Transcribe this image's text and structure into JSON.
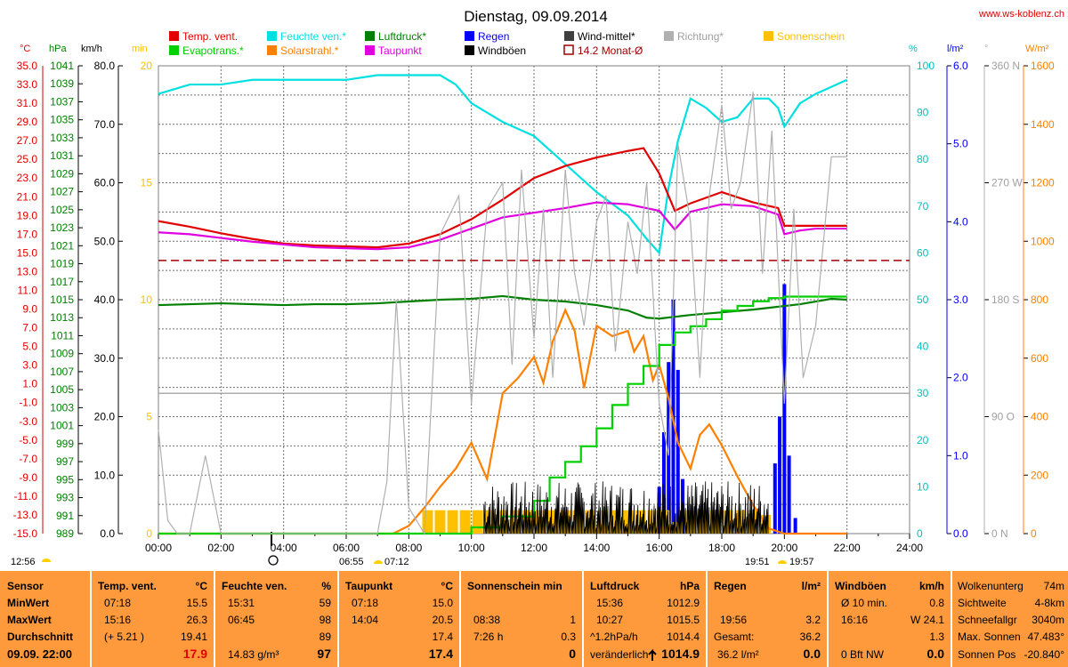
{
  "header": {
    "title": "Dienstag, 09.09.2014",
    "site": "www.ws-koblenz.ch"
  },
  "axis_units": {
    "temp": "°C",
    "hpa": "hPa",
    "kmh": "km/h",
    "min": "min",
    "pct": "%",
    "lm2": "l/m²",
    "deg": "°",
    "wm2": "W/m²"
  },
  "legend": [
    {
      "label": "Temp. vent.",
      "color": "#e00000",
      "style": "fill"
    },
    {
      "label": "Feuchte ven.*",
      "color": "#00e0e0",
      "style": "fill"
    },
    {
      "label": "Luftdruck*",
      "color": "#008000",
      "style": "fill"
    },
    {
      "label": "Regen",
      "color": "#0000ff",
      "style": "fill"
    },
    {
      "label": "Wind-mittel*",
      "color": "#404040",
      "style": "fill"
    },
    {
      "label": "Richtung*",
      "color": "#b0b0b0",
      "style": "fill"
    },
    {
      "label": "Sonnenschein",
      "color": "#ffc000",
      "style": "fill"
    },
    {
      "label": "Evapotrans.*",
      "color": "#00d000",
      "style": "fill"
    },
    {
      "label": "Solarstrahl.*",
      "color": "#ff8000",
      "style": "fill"
    },
    {
      "label": "Taupunkt",
      "color": "#e000e0",
      "style": "fill"
    },
    {
      "label": "Windböen",
      "color": "#000000",
      "style": "fill"
    },
    {
      "label": "14.2 Monat-Ø",
      "color": "#a00000",
      "style": "outline"
    }
  ],
  "chart_data": {
    "type": "line",
    "x_labels": [
      "00:00",
      "02:00",
      "04:00",
      "06:00",
      "08:00",
      "10:00",
      "12:00",
      "14:00",
      "16:00",
      "18:00",
      "20:00",
      "22:00",
      "24:00"
    ],
    "xlim": [
      0,
      24
    ],
    "axes": {
      "temp": {
        "ticks": [
          "35.0",
          "33.0",
          "31.0",
          "29.0",
          "27.0",
          "25.0",
          "23.0",
          "21.0",
          "19.0",
          "17.0",
          "15.0",
          "13.0",
          "11.0",
          "9.0",
          "7.0",
          "5.0",
          "3.0",
          "1.0",
          "-1.0",
          "-3.0",
          "-5.0",
          "-7.0",
          "-9.0",
          "-11.0",
          "-13.0",
          "-15.0"
        ],
        "range": [
          -15,
          35
        ]
      },
      "hpa": {
        "ticks": [
          "1041",
          "1039",
          "1037",
          "1035",
          "1033",
          "1031",
          "1029",
          "1027",
          "1025",
          "1023",
          "1021",
          "1019",
          "1017",
          "1015",
          "1013",
          "1011",
          "1009",
          "1007",
          "1005",
          "1003",
          "1001",
          "999",
          "997",
          "995",
          "993",
          "991",
          "989"
        ],
        "range": [
          989,
          1041
        ]
      },
      "kmh": {
        "ticks": [
          "80.0",
          "70.0",
          "60.0",
          "50.0",
          "40.0",
          "30.0",
          "20.0",
          "10.0",
          "0.0"
        ],
        "range": [
          0,
          80
        ]
      },
      "min": {
        "ticks": [
          "20",
          "15",
          "10",
          "5",
          "0"
        ],
        "range": [
          0,
          20
        ]
      },
      "pct": {
        "ticks": [
          "100",
          "90",
          "80",
          "70",
          "60",
          "50",
          "40",
          "30",
          "20",
          "10",
          "0"
        ],
        "range": [
          0,
          100
        ]
      },
      "lm2": {
        "ticks": [
          "6.0",
          "5.0",
          "4.0",
          "3.0",
          "2.0",
          "1.0",
          "0.0"
        ],
        "range": [
          0,
          6
        ]
      },
      "deg": {
        "ticks": [
          "360 N",
          "270 W",
          "180 S",
          "90 O",
          "0 N"
        ],
        "range": [
          0,
          360
        ]
      },
      "wm2": {
        "ticks": [
          "1600",
          "1400",
          "1200",
          "1000",
          "800",
          "600",
          "400",
          "200",
          "0"
        ],
        "range": [
          0,
          1800
        ]
      }
    },
    "series": [
      {
        "key": "feuchte",
        "axis": "pct",
        "color": "#00e0e0",
        "x": [
          0,
          0.5,
          1,
          2,
          3,
          4,
          5,
          6,
          7,
          8,
          9,
          9.5,
          10,
          11,
          12,
          13,
          14,
          15,
          15.6,
          16,
          16.3,
          16.6,
          17,
          17.5,
          18,
          18.5,
          19,
          19.5,
          19.8,
          20,
          20.5,
          21,
          22
        ],
        "y": [
          94,
          95,
          96,
          96,
          97,
          97,
          97,
          97,
          98,
          98,
          98,
          96,
          92,
          88,
          85,
          79,
          73,
          68,
          63,
          60,
          74,
          84,
          93,
          91,
          88,
          89,
          93,
          93,
          91,
          87,
          92,
          94,
          97
        ]
      },
      {
        "key": "temp",
        "axis": "temp",
        "color": "#e00000",
        "x": [
          0,
          1,
          2,
          3,
          4,
          5,
          6,
          7,
          8,
          9,
          10,
          11,
          12,
          13,
          14,
          15,
          15.5,
          16,
          16.5,
          17,
          18,
          19,
          19.8,
          20,
          21,
          22
        ],
        "y": [
          18.4,
          17.8,
          17.1,
          16.5,
          16.0,
          15.8,
          15.7,
          15.6,
          16.0,
          17.0,
          18.6,
          20.7,
          23.0,
          24.3,
          25.2,
          25.9,
          26.2,
          23.5,
          19.5,
          20.3,
          21.5,
          20.4,
          19.8,
          17.9,
          17.9,
          17.9
        ]
      },
      {
        "key": "taupunkt",
        "axis": "temp",
        "color": "#e000e0",
        "x": [
          0,
          1,
          2,
          3,
          4,
          5,
          6,
          7,
          8,
          9,
          10,
          11,
          12,
          13,
          14,
          15,
          16,
          16.5,
          17,
          18,
          19,
          19.8,
          20,
          20.5,
          21,
          22
        ],
        "y": [
          17.2,
          17.0,
          16.6,
          16.2,
          15.9,
          15.6,
          15.5,
          15.4,
          15.6,
          16.4,
          17.6,
          18.8,
          19.3,
          19.8,
          20.4,
          20.2,
          19.5,
          17.5,
          19.4,
          20.2,
          20.0,
          19.1,
          17.0,
          17.4,
          17.6,
          17.6
        ]
      },
      {
        "key": "luftdruck",
        "axis": "hpa",
        "color": "#008000",
        "x": [
          0,
          1,
          2,
          3,
          4,
          5,
          6,
          7,
          8,
          9,
          10,
          11,
          12,
          13,
          14,
          15,
          15.6,
          16,
          16.5,
          17,
          18,
          19,
          19.5,
          20,
          20.5,
          21,
          21.5,
          22
        ],
        "y": [
          1014.4,
          1014.5,
          1014.6,
          1014.5,
          1014.4,
          1014.5,
          1014.5,
          1014.6,
          1014.8,
          1015.0,
          1015.1,
          1015.4,
          1015.0,
          1014.8,
          1014.4,
          1013.8,
          1013.0,
          1012.9,
          1013.1,
          1013.3,
          1013.6,
          1013.9,
          1014.1,
          1014.3,
          1014.5,
          1014.8,
          1015.1,
          1015.0
        ]
      },
      {
        "key": "solar",
        "axis": "wm2",
        "color": "#ff8000",
        "x": [
          0,
          7.5,
          8,
          8.5,
          9,
          9.5,
          10,
          10.5,
          11,
          11.5,
          12,
          12.3,
          12.6,
          13,
          13.3,
          13.6,
          14,
          14.5,
          15,
          15.2,
          15.5,
          15.8,
          16,
          16.3,
          16.6,
          17,
          17.3,
          17.6,
          18,
          18.5,
          19,
          19.5,
          20,
          22
        ],
        "y": [
          0,
          0,
          30,
          100,
          180,
          250,
          350,
          210,
          540,
          600,
          680,
          580,
          740,
          860,
          780,
          560,
          800,
          760,
          780,
          700,
          760,
          590,
          650,
          520,
          350,
          250,
          380,
          420,
          340,
          220,
          110,
          20,
          0,
          0
        ]
      },
      {
        "key": "evapo",
        "axis": "lm2",
        "color": "#00d000",
        "step": true,
        "x": [
          0,
          9,
          10,
          11,
          12,
          12.5,
          13,
          13.5,
          14,
          14.5,
          15,
          15.5,
          16,
          16.5,
          17,
          17.5,
          18,
          18.5,
          19,
          19.5,
          20,
          22
        ],
        "y": [
          0,
          0,
          0.08,
          0.22,
          0.42,
          0.72,
          0.92,
          1.12,
          1.35,
          1.65,
          1.92,
          2.15,
          2.42,
          2.58,
          2.66,
          2.75,
          2.86,
          2.92,
          2.98,
          3.02,
          3.04,
          3.04
        ]
      },
      {
        "key": "richtung",
        "axis": "deg",
        "color": "#b0b0b0",
        "x": [
          0,
          0.3,
          0.6,
          1,
          1.5,
          2,
          2.5,
          3,
          3.5,
          4,
          5,
          6,
          7,
          7.3,
          7.6,
          8,
          8.5,
          9,
          9.2,
          9.6,
          10,
          10.5,
          11,
          11.3,
          11.6,
          12,
          12.3,
          12.6,
          13,
          13.3,
          13.6,
          14,
          14.3,
          14.6,
          15,
          15.3,
          15.6,
          16,
          16.3,
          16.6,
          17,
          17.3,
          17.6,
          18,
          18.3,
          18.6,
          19,
          19.3,
          19.6,
          20,
          20.3,
          20.6,
          21,
          21.5,
          22
        ],
        "y": [
          80,
          10,
          0,
          0,
          60,
          0,
          0,
          0,
          0,
          0,
          0,
          0,
          0,
          40,
          180,
          20,
          0,
          230,
          240,
          260,
          100,
          250,
          270,
          130,
          280,
          150,
          250,
          120,
          280,
          200,
          160,
          240,
          260,
          140,
          240,
          200,
          270,
          100,
          60,
          300,
          240,
          120,
          260,
          330,
          250,
          270,
          340,
          200,
          310,
          100,
          250,
          120,
          160,
          290,
          290
        ]
      },
      {
        "key": "monat",
        "axis": "temp",
        "color": "#a00000",
        "dashed": true,
        "x": [
          0,
          24
        ],
        "y": [
          14.2,
          14.2
        ]
      }
    ],
    "bars": [
      {
        "key": "regen",
        "axis": "lm2",
        "color": "#0000ff",
        "x": [
          16.0,
          16.15,
          16.3,
          16.45,
          16.6,
          16.75,
          19.7,
          19.85,
          20.0,
          20.15,
          20.35
        ],
        "y": [
          0.6,
          1.3,
          2.2,
          3.0,
          2.1,
          0.7,
          0.9,
          1.5,
          3.2,
          1.0,
          0.2
        ]
      },
      {
        "key": "sonne",
        "axis": "min",
        "color": "#ffc000",
        "x": [
          8.6,
          9,
          9.4,
          9.8,
          10.2,
          10.6,
          11,
          11.4,
          11.8,
          12.2,
          12.6,
          13,
          13.4,
          13.8,
          14.2,
          14.6,
          15,
          15.4,
          15.8,
          16.2,
          16.6,
          17,
          17.4,
          17.8,
          18.2,
          18.6,
          19,
          19.4
        ],
        "y": [
          1,
          1,
          1,
          1,
          1,
          1,
          1,
          1,
          1,
          1,
          1,
          1,
          1,
          1,
          1,
          1,
          1,
          1,
          1,
          1,
          0.5,
          1,
          1,
          1,
          1,
          1,
          1,
          0.8
        ]
      }
    ]
  },
  "annotations": {
    "sunrise": "06:55",
    "sunset_prev": "07:12",
    "sunset": "19:51",
    "sunset2": "19:57",
    "left_time": "12:56"
  },
  "summary": {
    "col0": {
      "h": "Sensor",
      "r1": "MinWert",
      "r2": "MaxWert",
      "r3": "Durchschnitt",
      "r4": "09.09. 22:00"
    },
    "col1": {
      "h": "Temp. vent.",
      "u": "°C",
      "t1": "07:18",
      "v1": "15.5",
      "t2": "15:16",
      "v2": "26.3",
      "t3": "(+ 5.21 )",
      "v3": "19.41",
      "v4": "17.9"
    },
    "col2": {
      "h": "Feuchte ven.",
      "u": "%",
      "t1": "15:31",
      "v1": "59",
      "t2": "06:45",
      "v2": "98",
      "v3": "89",
      "t4": "14.83 g/m³",
      "v4": "97"
    },
    "col3": {
      "h": "Taupunkt",
      "u": "°C",
      "t1": "07:18",
      "v1": "15.0",
      "t2": "14:04",
      "v2": "20.5",
      "v3": "17.4",
      "v4": "17.4"
    },
    "col4": {
      "h": "Sonnenschein min",
      "t2": "08:38",
      "v2": "1",
      "t3": "7:26 h",
      "v3": "0.3",
      "v4": "0"
    },
    "col5": {
      "h": "Luftdruck",
      "u": "hPa",
      "t1": "15:36",
      "v1": "1012.9",
      "t2": "10:27",
      "v2": "1015.5",
      "t3": "^1.2hPa/h",
      "v3": "1014.4",
      "t4": "veränderlich",
      "v4": "1014.9"
    },
    "col6": {
      "h": "Regen",
      "u": "l/m²",
      "t2": "19:56",
      "v2": "3.2",
      "t3": "Gesamt:",
      "v3": "36.2",
      "t4": "36.2 l/m²",
      "v4": "0.0"
    },
    "col7": {
      "h": "Windböen",
      "u": "km/h",
      "t1": "Ø 10 min.",
      "v1": "0.8",
      "t2": "16:16",
      "v2": "W 24.1",
      "v3": "1.3",
      "t4": "0 Bft NW",
      "v4": "0.0"
    },
    "col8": {
      "r0l": "Wolkenunterg",
      "r0v": "74m",
      "r1l": "Sichtweite",
      "r1v": "4-8km",
      "r2l": "Schneefallgr",
      "r2v": "3040m",
      "r3l": "Max. Sonnen",
      "r3v": "47.483°",
      "r4l": "Sonnen Pos",
      "r4v": "-20.840°"
    }
  }
}
